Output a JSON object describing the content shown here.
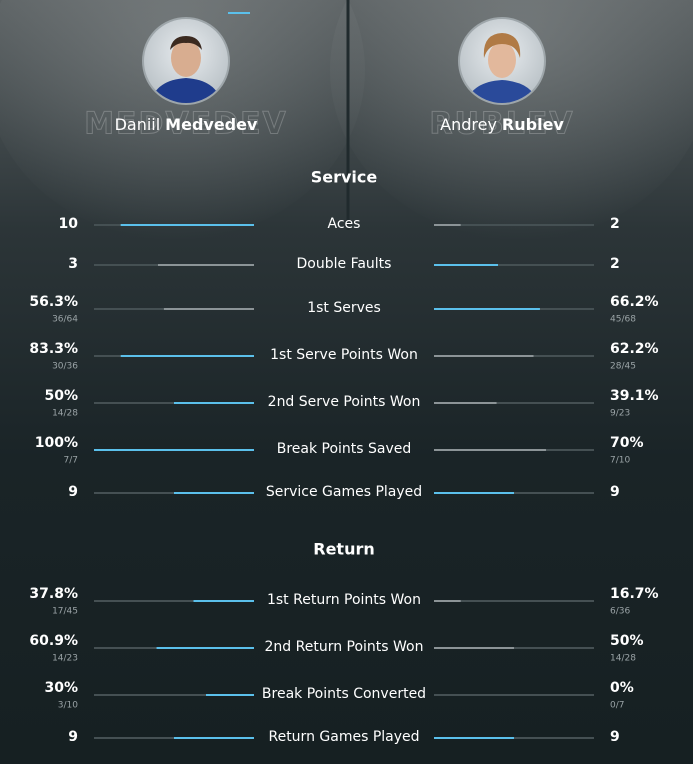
{
  "players": [
    {
      "first": "Daniil",
      "last": "Medvedev",
      "watermark": "MEDVEDEV"
    },
    {
      "first": "Andrey",
      "last": "Rublev",
      "watermark": "RUBLEV"
    }
  ],
  "sections": [
    {
      "title": "Service",
      "rows": [
        {
          "label": "Aces",
          "left": {
            "value": 10
          },
          "right": {
            "value": 2
          },
          "highlight": "left"
        },
        {
          "label": "Double Faults",
          "left": {
            "value": 3
          },
          "right": {
            "value": 2
          },
          "highlight": "right"
        },
        {
          "label": "1st Serves",
          "left": {
            "value": 56.3,
            "label": "56.3%",
            "detail": "36/64"
          },
          "right": {
            "value": 66.2,
            "label": "66.2%",
            "detail": "45/68"
          },
          "highlight": "right"
        },
        {
          "label": "1st Serve Points Won",
          "left": {
            "value": 83.3,
            "label": "83.3%",
            "detail": "30/36"
          },
          "right": {
            "value": 62.2,
            "label": "62.2%",
            "detail": "28/45"
          },
          "highlight": "left"
        },
        {
          "label": "2nd Serve Points Won",
          "left": {
            "value": 50,
            "label": "50%",
            "detail": "14/28"
          },
          "right": {
            "value": 39.1,
            "label": "39.1%",
            "detail": "9/23"
          },
          "highlight": "left"
        },
        {
          "label": "Break Points Saved",
          "left": {
            "value": 100,
            "label": "100%",
            "detail": "7/7"
          },
          "right": {
            "value": 70,
            "label": "70%",
            "detail": "7/10"
          },
          "highlight": "left"
        },
        {
          "label": "Service Games Played",
          "left": {
            "value": 9
          },
          "right": {
            "value": 9
          },
          "highlight": "both"
        }
      ]
    },
    {
      "title": "Return",
      "rows": [
        {
          "label": "1st Return Points Won",
          "left": {
            "value": 37.8,
            "label": "37.8%",
            "detail": "17/45"
          },
          "right": {
            "value": 16.7,
            "label": "16.7%",
            "detail": "6/36"
          },
          "highlight": "left"
        },
        {
          "label": "2nd Return Points Won",
          "left": {
            "value": 60.9,
            "label": "60.9%",
            "detail": "14/23"
          },
          "right": {
            "value": 50,
            "label": "50%",
            "detail": "14/28"
          },
          "highlight": "left"
        },
        {
          "label": "Break Points Converted",
          "left": {
            "value": 30,
            "label": "30%",
            "detail": "3/10"
          },
          "right": {
            "value": 0,
            "label": "0%",
            "detail": "0/7"
          },
          "highlight": "left"
        },
        {
          "label": "Return Games Played",
          "left": {
            "value": 9
          },
          "right": {
            "value": 9
          },
          "highlight": "both"
        }
      ]
    }
  ]
}
